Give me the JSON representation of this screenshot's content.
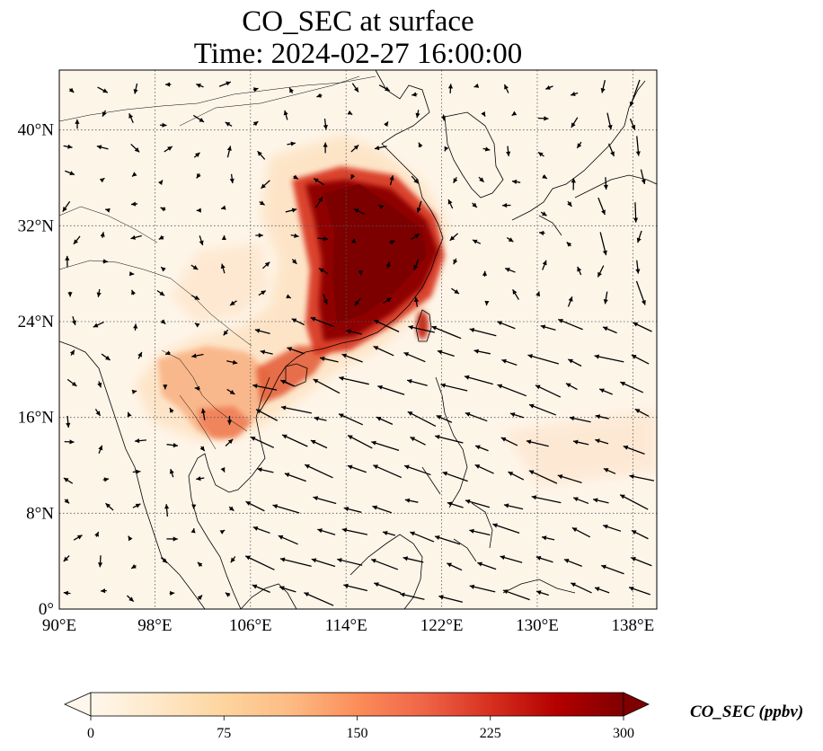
{
  "title": {
    "line1": "CO_SEC at surface",
    "line2": "Time: 2024-02-27 16:00:00"
  },
  "map": {
    "lon_range": [
      90,
      140
    ],
    "lat_range": [
      0,
      45
    ],
    "lon_ticks": [
      {
        "value": 90,
        "label": "90°E"
      },
      {
        "value": 98,
        "label": "98°E"
      },
      {
        "value": 106,
        "label": "106°E"
      },
      {
        "value": 114,
        "label": "114°E"
      },
      {
        "value": 122,
        "label": "122°E"
      },
      {
        "value": 130,
        "label": "130°E"
      },
      {
        "value": 138,
        "label": "138°E"
      }
    ],
    "lat_ticks": [
      {
        "value": 0,
        "label": "0°"
      },
      {
        "value": 8,
        "label": "8°N"
      },
      {
        "value": 16,
        "label": "16°N"
      },
      {
        "value": 24,
        "label": "24°N"
      },
      {
        "value": 32,
        "label": "32°N"
      },
      {
        "value": 40,
        "label": "40°N"
      }
    ],
    "gridlines": "dotted",
    "wind_vectors": true
  },
  "colorbar": {
    "label": "CO_SEC (ppbv)",
    "min": 0,
    "max": 300,
    "ticks": [
      {
        "value": 0,
        "label": "0"
      },
      {
        "value": 75,
        "label": "75"
      },
      {
        "value": 150,
        "label": "150"
      },
      {
        "value": 225,
        "label": "225"
      },
      {
        "value": 300,
        "label": "300"
      }
    ],
    "extend": "both",
    "colormap": "OrRd",
    "colors": [
      "#fff7ec",
      "#fee8c8",
      "#fdd49e",
      "#fdbb84",
      "#fc8d59",
      "#ef6548",
      "#d7301f",
      "#b30000",
      "#7f0000"
    ]
  }
}
